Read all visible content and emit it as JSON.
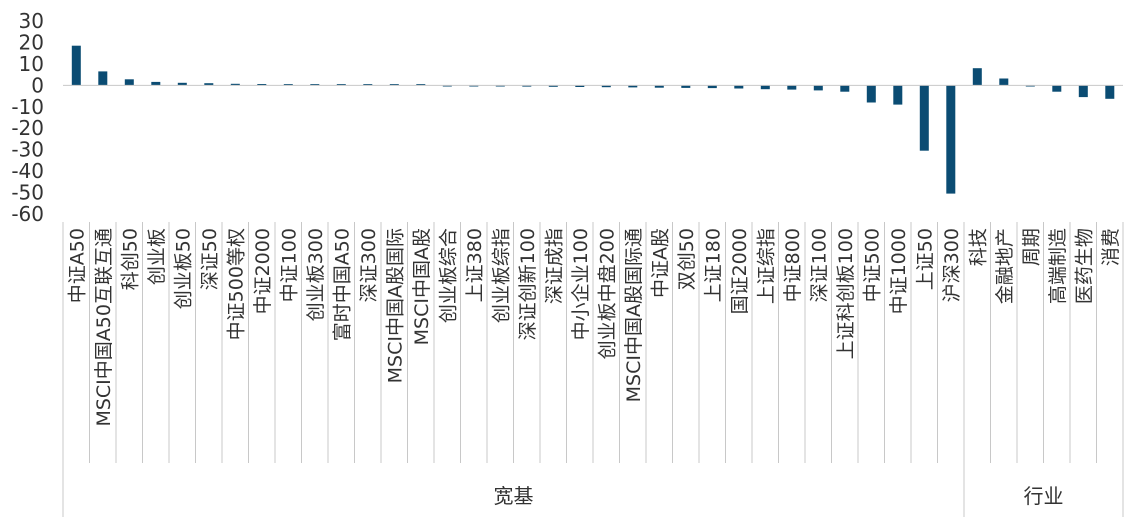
{
  "chart_data": {
    "type": "bar",
    "title": "",
    "xlabel": "",
    "ylabel": "",
    "ylim": [
      -60,
      30
    ],
    "yticks": [
      30,
      20,
      10,
      0,
      -10,
      -20,
      -30,
      -40,
      -50,
      -60
    ],
    "grid": false,
    "legend": "none",
    "color": "#0b4c73",
    "categories": [
      "中证A50",
      "MSCI中国A50互联互通",
      "科创50",
      "创业板",
      "创业板50",
      "深证50",
      "中证500等权",
      "中证2000",
      "中证100",
      "创业板300",
      "富时中国A50",
      "深证300",
      "MSCI中国A股国际",
      "MSCI中国A股",
      "创业板综合",
      "上证380",
      "创业板综指",
      "深证创新100",
      "深证成指",
      "中小企业100",
      "创业板中盘200",
      "MSCI中国A股国际通",
      "中证A股",
      "双创50",
      "上证180",
      "国证2000",
      "上证综指",
      "中证800",
      "深证100",
      "上证科创板100",
      "中证500",
      "中证1000",
      "上证50",
      "沪深300",
      "科技",
      "金融地产",
      "周期",
      "高端制造",
      "医药生物",
      "消费"
    ],
    "values": [
      18.5,
      6.5,
      2.8,
      1.6,
      1.2,
      1.0,
      0.7,
      0.6,
      0.5,
      0.4,
      0.3,
      0.1,
      0.0,
      0.0,
      -0.1,
      -0.2,
      -0.5,
      -0.6,
      -0.7,
      -0.8,
      -0.9,
      -1.0,
      -1.1,
      -1.2,
      -1.3,
      -1.5,
      -1.8,
      -2.0,
      -2.4,
      -3.0,
      -8.0,
      -9.0,
      -30.5,
      -50.5,
      8.0,
      3.2,
      -0.5,
      -3.0,
      -5.5,
      -6.3
    ],
    "groups": [
      {
        "label": "宽基",
        "count": 34
      },
      {
        "label": "行业",
        "count": 6
      }
    ]
  }
}
